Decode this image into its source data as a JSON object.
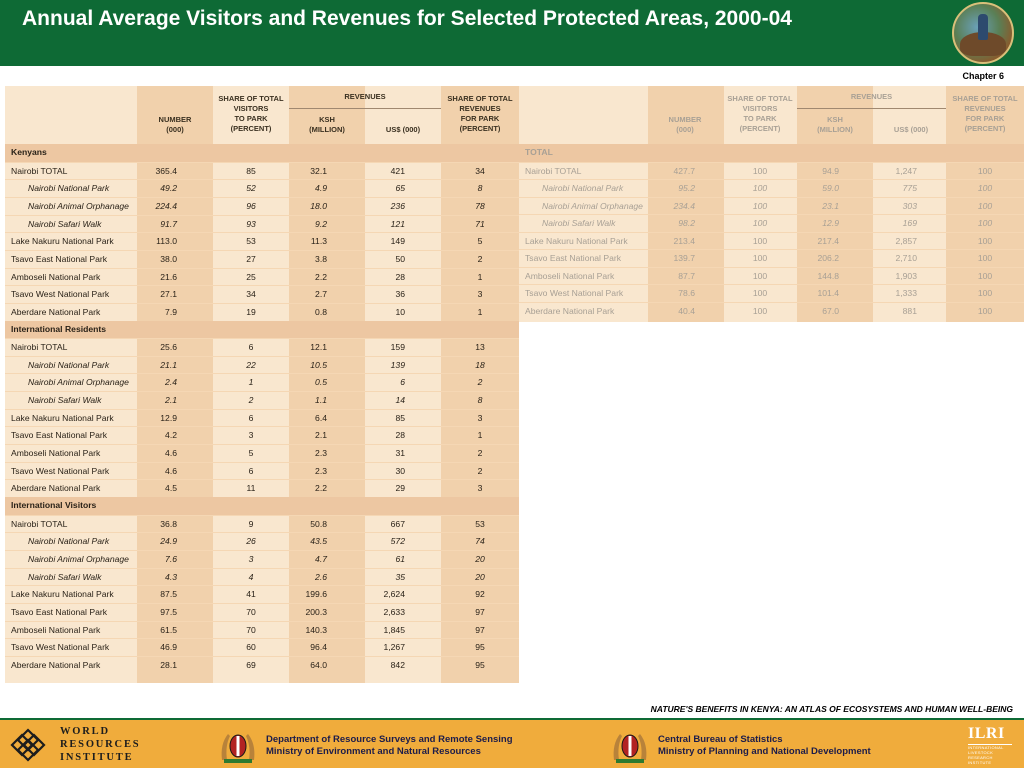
{
  "header": {
    "title": "Annual Average Visitors and Revenues for Selected Protected Areas, 2000-04",
    "chapter": "Chapter 6"
  },
  "left_table": {
    "headers": {
      "number": [
        "NUMBER",
        "(000)"
      ],
      "share_visitors": [
        "SHARE OF TOTAL",
        "VISITORS",
        "TO PARK",
        "(PERCENT)"
      ],
      "revenues": "REVENUES",
      "ksh": [
        "KSH",
        "(MILLION)"
      ],
      "usd": [
        "US$ (000)"
      ],
      "share_revenues": [
        "SHARE OF TOTAL",
        "REVENUES",
        "FOR PARK",
        "(PERCENT)"
      ]
    },
    "rows": [
      {
        "type": "section",
        "label": "Kenyans"
      },
      {
        "type": "row",
        "label": "Nairobi TOTAL",
        "values": [
          "365.4",
          "85",
          "32.1",
          "421",
          "34"
        ]
      },
      {
        "type": "sub",
        "label": "Nairobi National Park",
        "values": [
          "49.2",
          "52",
          "4.9",
          "65",
          "8"
        ]
      },
      {
        "type": "sub",
        "label": "Nairobi Animal Orphanage",
        "values": [
          "224.4",
          "96",
          "18.0",
          "236",
          "78"
        ]
      },
      {
        "type": "sub",
        "label": "Nairobi Safari Walk",
        "values": [
          "91.7",
          "93",
          "9.2",
          "121",
          "71"
        ]
      },
      {
        "type": "row",
        "label": "Lake Nakuru National Park",
        "values": [
          "113.0",
          "53",
          "11.3",
          "149",
          "5"
        ]
      },
      {
        "type": "row",
        "label": "Tsavo East National Park",
        "values": [
          "38.0",
          "27",
          "3.8",
          "50",
          "2"
        ]
      },
      {
        "type": "row",
        "label": "Amboseli National Park",
        "values": [
          "21.6",
          "25",
          "2.2",
          "28",
          "1"
        ]
      },
      {
        "type": "row",
        "label": "Tsavo West National Park",
        "values": [
          "27.1",
          "34",
          "2.7",
          "36",
          "3"
        ]
      },
      {
        "type": "row",
        "label": "Aberdare National Park",
        "values": [
          "7.9",
          "19",
          "0.8",
          "10",
          "1"
        ]
      },
      {
        "type": "section",
        "label": "International Residents"
      },
      {
        "type": "row",
        "label": "Nairobi TOTAL",
        "values": [
          "25.6",
          "6",
          "12.1",
          "159",
          "13"
        ]
      },
      {
        "type": "sub",
        "label": "Nairobi National Park",
        "values": [
          "21.1",
          "22",
          "10.5",
          "139",
          "18"
        ]
      },
      {
        "type": "sub",
        "label": "Nairobi Animal Orphanage",
        "values": [
          "2.4",
          "1",
          "0.5",
          "6",
          "2"
        ]
      },
      {
        "type": "sub",
        "label": "Nairobi Safari Walk",
        "values": [
          "2.1",
          "2",
          "1.1",
          "14",
          "8"
        ]
      },
      {
        "type": "row",
        "label": "Lake Nakuru National Park",
        "values": [
          "12.9",
          "6",
          "6.4",
          "85",
          "3"
        ]
      },
      {
        "type": "row",
        "label": "Tsavo East National Park",
        "values": [
          "4.2",
          "3",
          "2.1",
          "28",
          "1"
        ]
      },
      {
        "type": "row",
        "label": "Amboseli National Park",
        "values": [
          "4.6",
          "5",
          "2.3",
          "31",
          "2"
        ]
      },
      {
        "type": "row",
        "label": "Tsavo West National Park",
        "values": [
          "4.6",
          "6",
          "2.3",
          "30",
          "2"
        ]
      },
      {
        "type": "row",
        "label": "Aberdare National Park",
        "values": [
          "4.5",
          "11",
          "2.2",
          "29",
          "3"
        ]
      },
      {
        "type": "section",
        "label": "International Visitors"
      },
      {
        "type": "row",
        "label": "Nairobi TOTAL",
        "values": [
          "36.8",
          "9",
          "50.8",
          "667",
          "53"
        ]
      },
      {
        "type": "sub",
        "label": "Nairobi National Park",
        "values": [
          "24.9",
          "26",
          "43.5",
          "572",
          "74"
        ]
      },
      {
        "type": "sub",
        "label": "Nairobi Animal Orphanage",
        "values": [
          "7.6",
          "3",
          "4.7",
          "61",
          "20"
        ]
      },
      {
        "type": "sub",
        "label": "Nairobi Safari Walk",
        "values": [
          "4.3",
          "4",
          "2.6",
          "35",
          "20"
        ]
      },
      {
        "type": "row",
        "label": "Lake Nakuru National Park",
        "values": [
          "87.5",
          "41",
          "199.6",
          "2,624",
          "92"
        ]
      },
      {
        "type": "row",
        "label": "Tsavo East National Park",
        "values": [
          "97.5",
          "70",
          "200.3",
          "2,633",
          "97"
        ]
      },
      {
        "type": "row",
        "label": "Amboseli National Park",
        "values": [
          "61.5",
          "70",
          "140.3",
          "1,845",
          "97"
        ]
      },
      {
        "type": "row",
        "label": "Tsavo West National Park",
        "values": [
          "46.9",
          "60",
          "96.4",
          "1,267",
          "95"
        ]
      },
      {
        "type": "row",
        "label": "Aberdare National Park",
        "values": [
          "28.1",
          "69",
          "64.0",
          "842",
          "95"
        ]
      }
    ]
  },
  "right_table": {
    "headers": {
      "number": [
        "NUMBER",
        "(000)"
      ],
      "share_visitors": [
        "SHARE OF TOTAL",
        "VISITORS",
        "TO PARK",
        "(PERCENT)"
      ],
      "revenues": "REVENUES",
      "ksh": [
        "KSH",
        "(MILLION)"
      ],
      "usd": [
        "US$ (000)"
      ],
      "share_revenues": [
        "SHARE OF TOTAL",
        "REVENUES",
        "FOR PARK",
        "(PERCENT)"
      ]
    },
    "rows": [
      {
        "type": "section",
        "label": "TOTAL"
      },
      {
        "type": "row",
        "label": "Nairobi TOTAL",
        "values": [
          "427.7",
          "100",
          "94.9",
          "1,247",
          "100"
        ]
      },
      {
        "type": "sub",
        "label": "Nairobi National Park",
        "values": [
          "95.2",
          "100",
          "59.0",
          "775",
          "100"
        ]
      },
      {
        "type": "sub",
        "label": "Nairobi Animal Orphanage",
        "values": [
          "234.4",
          "100",
          "23.1",
          "303",
          "100"
        ]
      },
      {
        "type": "sub",
        "label": "Nairobi Safari Walk",
        "values": [
          "98.2",
          "100",
          "12.9",
          "169",
          "100"
        ]
      },
      {
        "type": "row",
        "label": "Lake Nakuru National Park",
        "values": [
          "213.4",
          "100",
          "217.4",
          "2,857",
          "100"
        ]
      },
      {
        "type": "row",
        "label": "Tsavo East National Park",
        "values": [
          "139.7",
          "100",
          "206.2",
          "2,710",
          "100"
        ]
      },
      {
        "type": "row",
        "label": "Amboseli National Park",
        "values": [
          "87.7",
          "100",
          "144.8",
          "1,903",
          "100"
        ]
      },
      {
        "type": "row",
        "label": "Tsavo West National Park",
        "values": [
          "78.6",
          "100",
          "101.4",
          "1,333",
          "100"
        ]
      },
      {
        "type": "row",
        "label": "Aberdare National Park",
        "values": [
          "40.4",
          "100",
          "67.0",
          "881",
          "100"
        ]
      }
    ]
  },
  "footer": {
    "atlas_caption": "NATURE'S BENEFITS IN KENYA: AN ATLAS OF ECOSYSTEMS AND HUMAN WELL-BEING",
    "wri_lines": [
      "WORLD",
      "RESOURCES",
      "INSTITUTE"
    ],
    "dept1_lines": [
      "Department of Resource Surveys and Remote Sensing",
      "Ministry of Environment and Natural Resources"
    ],
    "dept2_lines": [
      "Central Bureau of Statistics",
      "Ministry of Planning and National Development"
    ],
    "ilri_name": "ILRI",
    "ilri_small_lines": [
      "INTERNATIONAL",
      "LIVESTOCK RESEARCH",
      "INSTITUTE"
    ]
  }
}
